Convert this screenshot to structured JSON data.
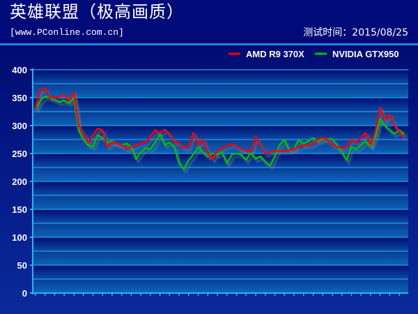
{
  "header": {
    "title": "英雄联盟（极高画质）",
    "source": "[www.PConline.com.cn]",
    "date": "测试时间：2015/08/25"
  },
  "chart_data": {
    "type": "line",
    "title": "英雄联盟（极高画质）",
    "xlabel": "",
    "ylabel": "",
    "ylim": [
      0,
      400
    ],
    "yticks": [
      0,
      50,
      100,
      150,
      200,
      250,
      300,
      350,
      400
    ],
    "grid": true,
    "legend_position": "top-right",
    "series": [
      {
        "name": "AMD R9 370X",
        "color": "#ff0000",
        "values": [
          330,
          365,
          367,
          350,
          350,
          352,
          355,
          345,
          360,
          300,
          285,
          270,
          283,
          295,
          292,
          262,
          270,
          268,
          265,
          258,
          262,
          265,
          268,
          270,
          280,
          292,
          287,
          293,
          285,
          270,
          268,
          260,
          262,
          287,
          265,
          275,
          252,
          240,
          255,
          260,
          265,
          267,
          263,
          258,
          255,
          253,
          280,
          265,
          250,
          252,
          255,
          255,
          255,
          256,
          258,
          262,
          265,
          265,
          268,
          275,
          278,
          275,
          265,
          262,
          260,
          262,
          275,
          270,
          278,
          287,
          265,
          290,
          332,
          310,
          320,
          300,
          290,
          278
        ]
      },
      {
        "name": "NVIDIA GTX950",
        "color": "#00c000",
        "values": [
          328,
          345,
          352,
          350,
          347,
          342,
          345,
          340,
          350,
          292,
          275,
          265,
          262,
          283,
          278,
          270,
          272,
          268,
          265,
          268,
          262,
          240,
          252,
          260,
          258,
          270,
          285,
          265,
          270,
          262,
          232,
          222,
          238,
          248,
          262,
          252,
          245,
          250,
          248,
          252,
          232,
          248,
          250,
          248,
          238,
          252,
          240,
          245,
          235,
          228,
          245,
          265,
          275,
          255,
          258,
          275,
          268,
          272,
          278,
          272,
          275,
          276,
          276,
          265,
          252,
          238,
          262,
          258,
          265,
          272,
          262,
          280,
          312,
          300,
          292,
          285,
          292,
          285
        ]
      }
    ]
  }
}
